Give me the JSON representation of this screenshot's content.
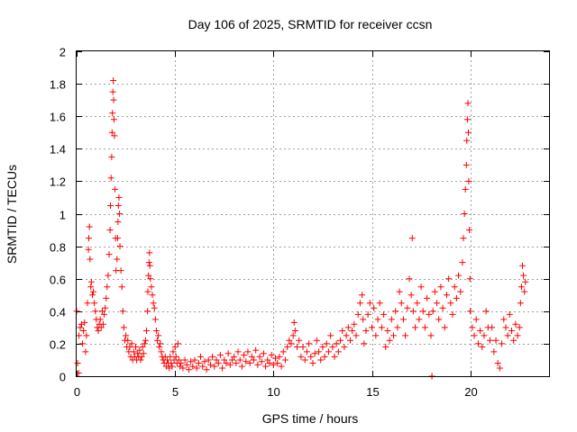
{
  "chart_data": {
    "type": "scatter",
    "title": "Day 106 of 2025, SRMTID for receiver ccsn",
    "xlabel": "GPS time / hours",
    "ylabel": "SRMTID / TECUs",
    "xlim": [
      0,
      24
    ],
    "ylim": [
      0,
      2
    ],
    "xticks": [
      "0",
      "5",
      "10",
      "15",
      "20"
    ],
    "yticks": [
      "0",
      "0.2",
      "0.4",
      "0.6",
      "0.8",
      "1",
      "1.2",
      "1.4",
      "1.6",
      "1.8",
      "2"
    ],
    "grid": true,
    "marker": "+",
    "series": [
      {
        "name": "SRMTID",
        "color": "#ff0000",
        "points": [
          [
            0.0,
            0.4
          ],
          [
            0.05,
            0.08
          ],
          [
            0.1,
            0.02
          ],
          [
            0.12,
            0.25
          ],
          [
            0.18,
            0.3
          ],
          [
            0.25,
            0.32
          ],
          [
            0.3,
            0.2
          ],
          [
            0.35,
            0.28
          ],
          [
            0.4,
            0.33
          ],
          [
            0.45,
            0.15
          ],
          [
            0.5,
            0.25
          ],
          [
            0.55,
            0.45
          ],
          [
            0.6,
            0.78
          ],
          [
            0.62,
            0.85
          ],
          [
            0.65,
            0.92
          ],
          [
            0.68,
            0.72
          ],
          [
            0.72,
            0.55
          ],
          [
            0.75,
            0.58
          ],
          [
            0.8,
            0.5
          ],
          [
            0.85,
            0.52
          ],
          [
            0.9,
            0.45
          ],
          [
            0.95,
            0.4
          ],
          [
            1.0,
            0.35
          ],
          [
            1.05,
            0.3
          ],
          [
            1.1,
            0.28
          ],
          [
            1.15,
            0.32
          ],
          [
            1.2,
            0.35
          ],
          [
            1.25,
            0.3
          ],
          [
            1.3,
            0.4
          ],
          [
            1.35,
            0.32
          ],
          [
            1.4,
            0.38
          ],
          [
            1.45,
            0.42
          ],
          [
            1.5,
            0.48
          ],
          [
            1.55,
            0.55
          ],
          [
            1.6,
            0.62
          ],
          [
            1.65,
            0.75
          ],
          [
            1.7,
            0.9
          ],
          [
            1.72,
            1.05
          ],
          [
            1.75,
            1.22
          ],
          [
            1.78,
            1.35
          ],
          [
            1.8,
            1.5
          ],
          [
            1.82,
            1.62
          ],
          [
            1.84,
            1.75
          ],
          [
            1.86,
            1.82
          ],
          [
            1.88,
            1.7
          ],
          [
            1.9,
            1.58
          ],
          [
            1.92,
            1.48
          ],
          [
            1.95,
            1.15
          ],
          [
            1.98,
            0.85
          ],
          [
            2.0,
            0.65
          ],
          [
            2.05,
            0.72
          ],
          [
            2.08,
            0.85
          ],
          [
            2.1,
            0.95
          ],
          [
            2.12,
            1.05
          ],
          [
            2.15,
            1.1
          ],
          [
            2.18,
            1.0
          ],
          [
            2.2,
            0.8
          ],
          [
            2.25,
            0.65
          ],
          [
            2.3,
            0.55
          ],
          [
            2.35,
            0.4
          ],
          [
            2.4,
            0.3
          ],
          [
            2.45,
            0.22
          ],
          [
            2.5,
            0.25
          ],
          [
            2.55,
            0.18
          ],
          [
            2.6,
            0.22
          ],
          [
            2.65,
            0.15
          ],
          [
            2.7,
            0.18
          ],
          [
            2.75,
            0.12
          ],
          [
            2.8,
            0.2
          ],
          [
            2.85,
            0.1
          ],
          [
            2.9,
            0.15
          ],
          [
            2.95,
            0.12
          ],
          [
            3.0,
            0.18
          ],
          [
            3.05,
            0.1
          ],
          [
            3.1,
            0.14
          ],
          [
            3.15,
            0.12
          ],
          [
            3.2,
            0.16
          ],
          [
            3.25,
            0.1
          ],
          [
            3.3,
            0.12
          ],
          [
            3.35,
            0.18
          ],
          [
            3.4,
            0.14
          ],
          [
            3.45,
            0.2
          ],
          [
            3.5,
            0.22
          ],
          [
            3.55,
            0.28
          ],
          [
            3.6,
            0.4
          ],
          [
            3.62,
            0.52
          ],
          [
            3.65,
            0.62
          ],
          [
            3.68,
            0.7
          ],
          [
            3.7,
            0.76
          ],
          [
            3.72,
            0.68
          ],
          [
            3.75,
            0.6
          ],
          [
            3.8,
            0.55
          ],
          [
            3.85,
            0.5
          ],
          [
            3.9,
            0.45
          ],
          [
            3.95,
            0.42
          ],
          [
            4.0,
            0.35
          ],
          [
            4.05,
            0.28
          ],
          [
            4.1,
            0.22
          ],
          [
            4.15,
            0.25
          ],
          [
            4.2,
            0.18
          ],
          [
            4.25,
            0.2
          ],
          [
            4.3,
            0.15
          ],
          [
            4.35,
            0.12
          ],
          [
            4.4,
            0.1
          ],
          [
            4.45,
            0.08
          ],
          [
            4.5,
            0.12
          ],
          [
            4.55,
            0.06
          ],
          [
            4.6,
            0.1
          ],
          [
            4.65,
            0.08
          ],
          [
            4.7,
            0.05
          ],
          [
            4.75,
            0.12
          ],
          [
            4.8,
            0.08
          ],
          [
            4.85,
            0.06
          ],
          [
            4.9,
            0.15
          ],
          [
            4.95,
            0.1
          ],
          [
            5.0,
            0.18
          ],
          [
            5.05,
            0.12
          ],
          [
            5.1,
            0.08
          ],
          [
            5.15,
            0.2
          ],
          [
            5.2,
            0.1
          ],
          [
            5.25,
            0.06
          ],
          [
            5.3,
            0.08
          ],
          [
            5.4,
            0.05
          ],
          [
            5.5,
            0.1
          ],
          [
            5.6,
            0.07
          ],
          [
            5.7,
            0.04
          ],
          [
            5.8,
            0.09
          ],
          [
            5.9,
            0.06
          ],
          [
            6.0,
            0.1
          ],
          [
            6.1,
            0.05
          ],
          [
            6.2,
            0.08
          ],
          [
            6.3,
            0.12
          ],
          [
            6.4,
            0.06
          ],
          [
            6.5,
            0.09
          ],
          [
            6.6,
            0.04
          ],
          [
            6.7,
            0.1
          ],
          [
            6.8,
            0.07
          ],
          [
            6.9,
            0.12
          ],
          [
            7.0,
            0.06
          ],
          [
            7.1,
            0.1
          ],
          [
            7.2,
            0.08
          ],
          [
            7.3,
            0.13
          ],
          [
            7.4,
            0.05
          ],
          [
            7.5,
            0.1
          ],
          [
            7.6,
            0.08
          ],
          [
            7.7,
            0.14
          ],
          [
            7.8,
            0.07
          ],
          [
            7.9,
            0.1
          ],
          [
            8.0,
            0.12
          ],
          [
            8.1,
            0.08
          ],
          [
            8.2,
            0.15
          ],
          [
            8.3,
            0.1
          ],
          [
            8.4,
            0.06
          ],
          [
            8.5,
            0.13
          ],
          [
            8.6,
            0.09
          ],
          [
            8.7,
            0.15
          ],
          [
            8.8,
            0.08
          ],
          [
            8.9,
            0.12
          ],
          [
            9.0,
            0.1
          ],
          [
            9.1,
            0.16
          ],
          [
            9.2,
            0.07
          ],
          [
            9.3,
            0.12
          ],
          [
            9.4,
            0.09
          ],
          [
            9.5,
            0.14
          ],
          [
            9.6,
            0.06
          ],
          [
            9.7,
            0.1
          ],
          [
            9.8,
            0.08
          ],
          [
            9.9,
            0.13
          ],
          [
            10.0,
            0.07
          ],
          [
            10.1,
            0.11
          ],
          [
            10.2,
            0.08
          ],
          [
            10.3,
            0.12
          ],
          [
            10.4,
            0.06
          ],
          [
            10.5,
            0.15
          ],
          [
            10.6,
            0.1
          ],
          [
            10.7,
            0.18
          ],
          [
            10.8,
            0.22
          ],
          [
            10.9,
            0.2
          ],
          [
            11.0,
            0.25
          ],
          [
            11.05,
            0.33
          ],
          [
            11.1,
            0.28
          ],
          [
            11.2,
            0.18
          ],
          [
            11.3,
            0.22
          ],
          [
            11.4,
            0.12
          ],
          [
            11.5,
            0.18
          ],
          [
            11.6,
            0.1
          ],
          [
            11.7,
            0.15
          ],
          [
            11.8,
            0.2
          ],
          [
            11.9,
            0.12
          ],
          [
            12.0,
            0.08
          ],
          [
            12.1,
            0.14
          ],
          [
            12.2,
            0.22
          ],
          [
            12.3,
            0.15
          ],
          [
            12.4,
            0.1
          ],
          [
            12.5,
            0.18
          ],
          [
            12.6,
            0.12
          ],
          [
            12.7,
            0.2
          ],
          [
            12.8,
            0.15
          ],
          [
            12.9,
            0.25
          ],
          [
            13.0,
            0.18
          ],
          [
            13.1,
            0.12
          ],
          [
            13.2,
            0.2
          ],
          [
            13.3,
            0.15
          ],
          [
            13.4,
            0.22
          ],
          [
            13.5,
            0.28
          ],
          [
            13.6,
            0.18
          ],
          [
            13.7,
            0.25
          ],
          [
            13.8,
            0.3
          ],
          [
            13.9,
            0.22
          ],
          [
            14.0,
            0.28
          ],
          [
            14.1,
            0.32
          ],
          [
            14.2,
            0.25
          ],
          [
            14.3,
            0.38
          ],
          [
            14.4,
            0.45
          ],
          [
            14.5,
            0.5
          ],
          [
            14.55,
            0.35
          ],
          [
            14.6,
            0.2
          ],
          [
            14.7,
            0.28
          ],
          [
            14.8,
            0.38
          ],
          [
            14.9,
            0.45
          ],
          [
            15.0,
            0.3
          ],
          [
            15.1,
            0.42
          ],
          [
            15.2,
            0.25
          ],
          [
            15.3,
            0.35
          ],
          [
            15.4,
            0.45
          ],
          [
            15.5,
            0.3
          ],
          [
            15.6,
            0.38
          ],
          [
            15.7,
            0.18
          ],
          [
            15.8,
            0.28
          ],
          [
            15.9,
            0.22
          ],
          [
            16.0,
            0.35
          ],
          [
            16.1,
            0.25
          ],
          [
            16.2,
            0.4
          ],
          [
            16.3,
            0.3
          ],
          [
            16.4,
            0.52
          ],
          [
            16.5,
            0.45
          ],
          [
            16.6,
            0.35
          ],
          [
            16.7,
            0.25
          ],
          [
            16.8,
            0.42
          ],
          [
            16.9,
            0.6
          ],
          [
            17.0,
            0.5
          ],
          [
            17.05,
            0.85
          ],
          [
            17.1,
            0.4
          ],
          [
            17.2,
            0.3
          ],
          [
            17.3,
            0.45
          ],
          [
            17.4,
            0.35
          ],
          [
            17.5,
            0.55
          ],
          [
            17.6,
            0.4
          ],
          [
            17.7,
            0.3
          ],
          [
            17.8,
            0.48
          ],
          [
            17.9,
            0.38
          ],
          [
            18.0,
            0.25
          ],
          [
            18.05,
            0.0
          ],
          [
            18.1,
            0.4
          ],
          [
            18.2,
            0.52
          ],
          [
            18.3,
            0.45
          ],
          [
            18.4,
            0.35
          ],
          [
            18.5,
            0.55
          ],
          [
            18.6,
            0.42
          ],
          [
            18.7,
            0.3
          ],
          [
            18.8,
            0.5
          ],
          [
            18.9,
            0.6
          ],
          [
            19.0,
            0.45
          ],
          [
            19.1,
            0.38
          ],
          [
            19.2,
            0.55
          ],
          [
            19.3,
            0.48
          ],
          [
            19.4,
            0.62
          ],
          [
            19.5,
            0.52
          ],
          [
            19.6,
            0.7
          ],
          [
            19.65,
            0.85
          ],
          [
            19.7,
            1.0
          ],
          [
            19.75,
            1.15
          ],
          [
            19.8,
            1.3
          ],
          [
            19.82,
            1.45
          ],
          [
            19.85,
            1.58
          ],
          [
            19.88,
            1.68
          ],
          [
            19.9,
            1.5
          ],
          [
            19.92,
            1.2
          ],
          [
            19.95,
            0.9
          ],
          [
            19.98,
            0.6
          ],
          [
            20.0,
            0.4
          ],
          [
            20.1,
            0.3
          ],
          [
            20.2,
            0.25
          ],
          [
            20.3,
            0.35
          ],
          [
            20.4,
            0.2
          ],
          [
            20.5,
            0.28
          ],
          [
            20.6,
            0.18
          ],
          [
            20.7,
            0.25
          ],
          [
            20.8,
            0.4
          ],
          [
            20.9,
            0.3
          ],
          [
            21.0,
            0.22
          ],
          [
            21.1,
            0.3
          ],
          [
            21.2,
            0.15
          ],
          [
            21.3,
            0.22
          ],
          [
            21.4,
            0.08
          ],
          [
            21.5,
            0.05
          ],
          [
            21.6,
            0.2
          ],
          [
            21.7,
            0.35
          ],
          [
            21.8,
            0.3
          ],
          [
            21.9,
            0.25
          ],
          [
            22.0,
            0.38
          ],
          [
            22.1,
            0.28
          ],
          [
            22.2,
            0.22
          ],
          [
            22.3,
            0.32
          ],
          [
            22.4,
            0.25
          ],
          [
            22.5,
            0.3
          ],
          [
            22.55,
            0.45
          ],
          [
            22.6,
            0.55
          ],
          [
            22.65,
            0.68
          ],
          [
            22.7,
            0.62
          ],
          [
            22.75,
            0.52
          ],
          [
            22.8,
            0.58
          ]
        ]
      }
    ]
  }
}
